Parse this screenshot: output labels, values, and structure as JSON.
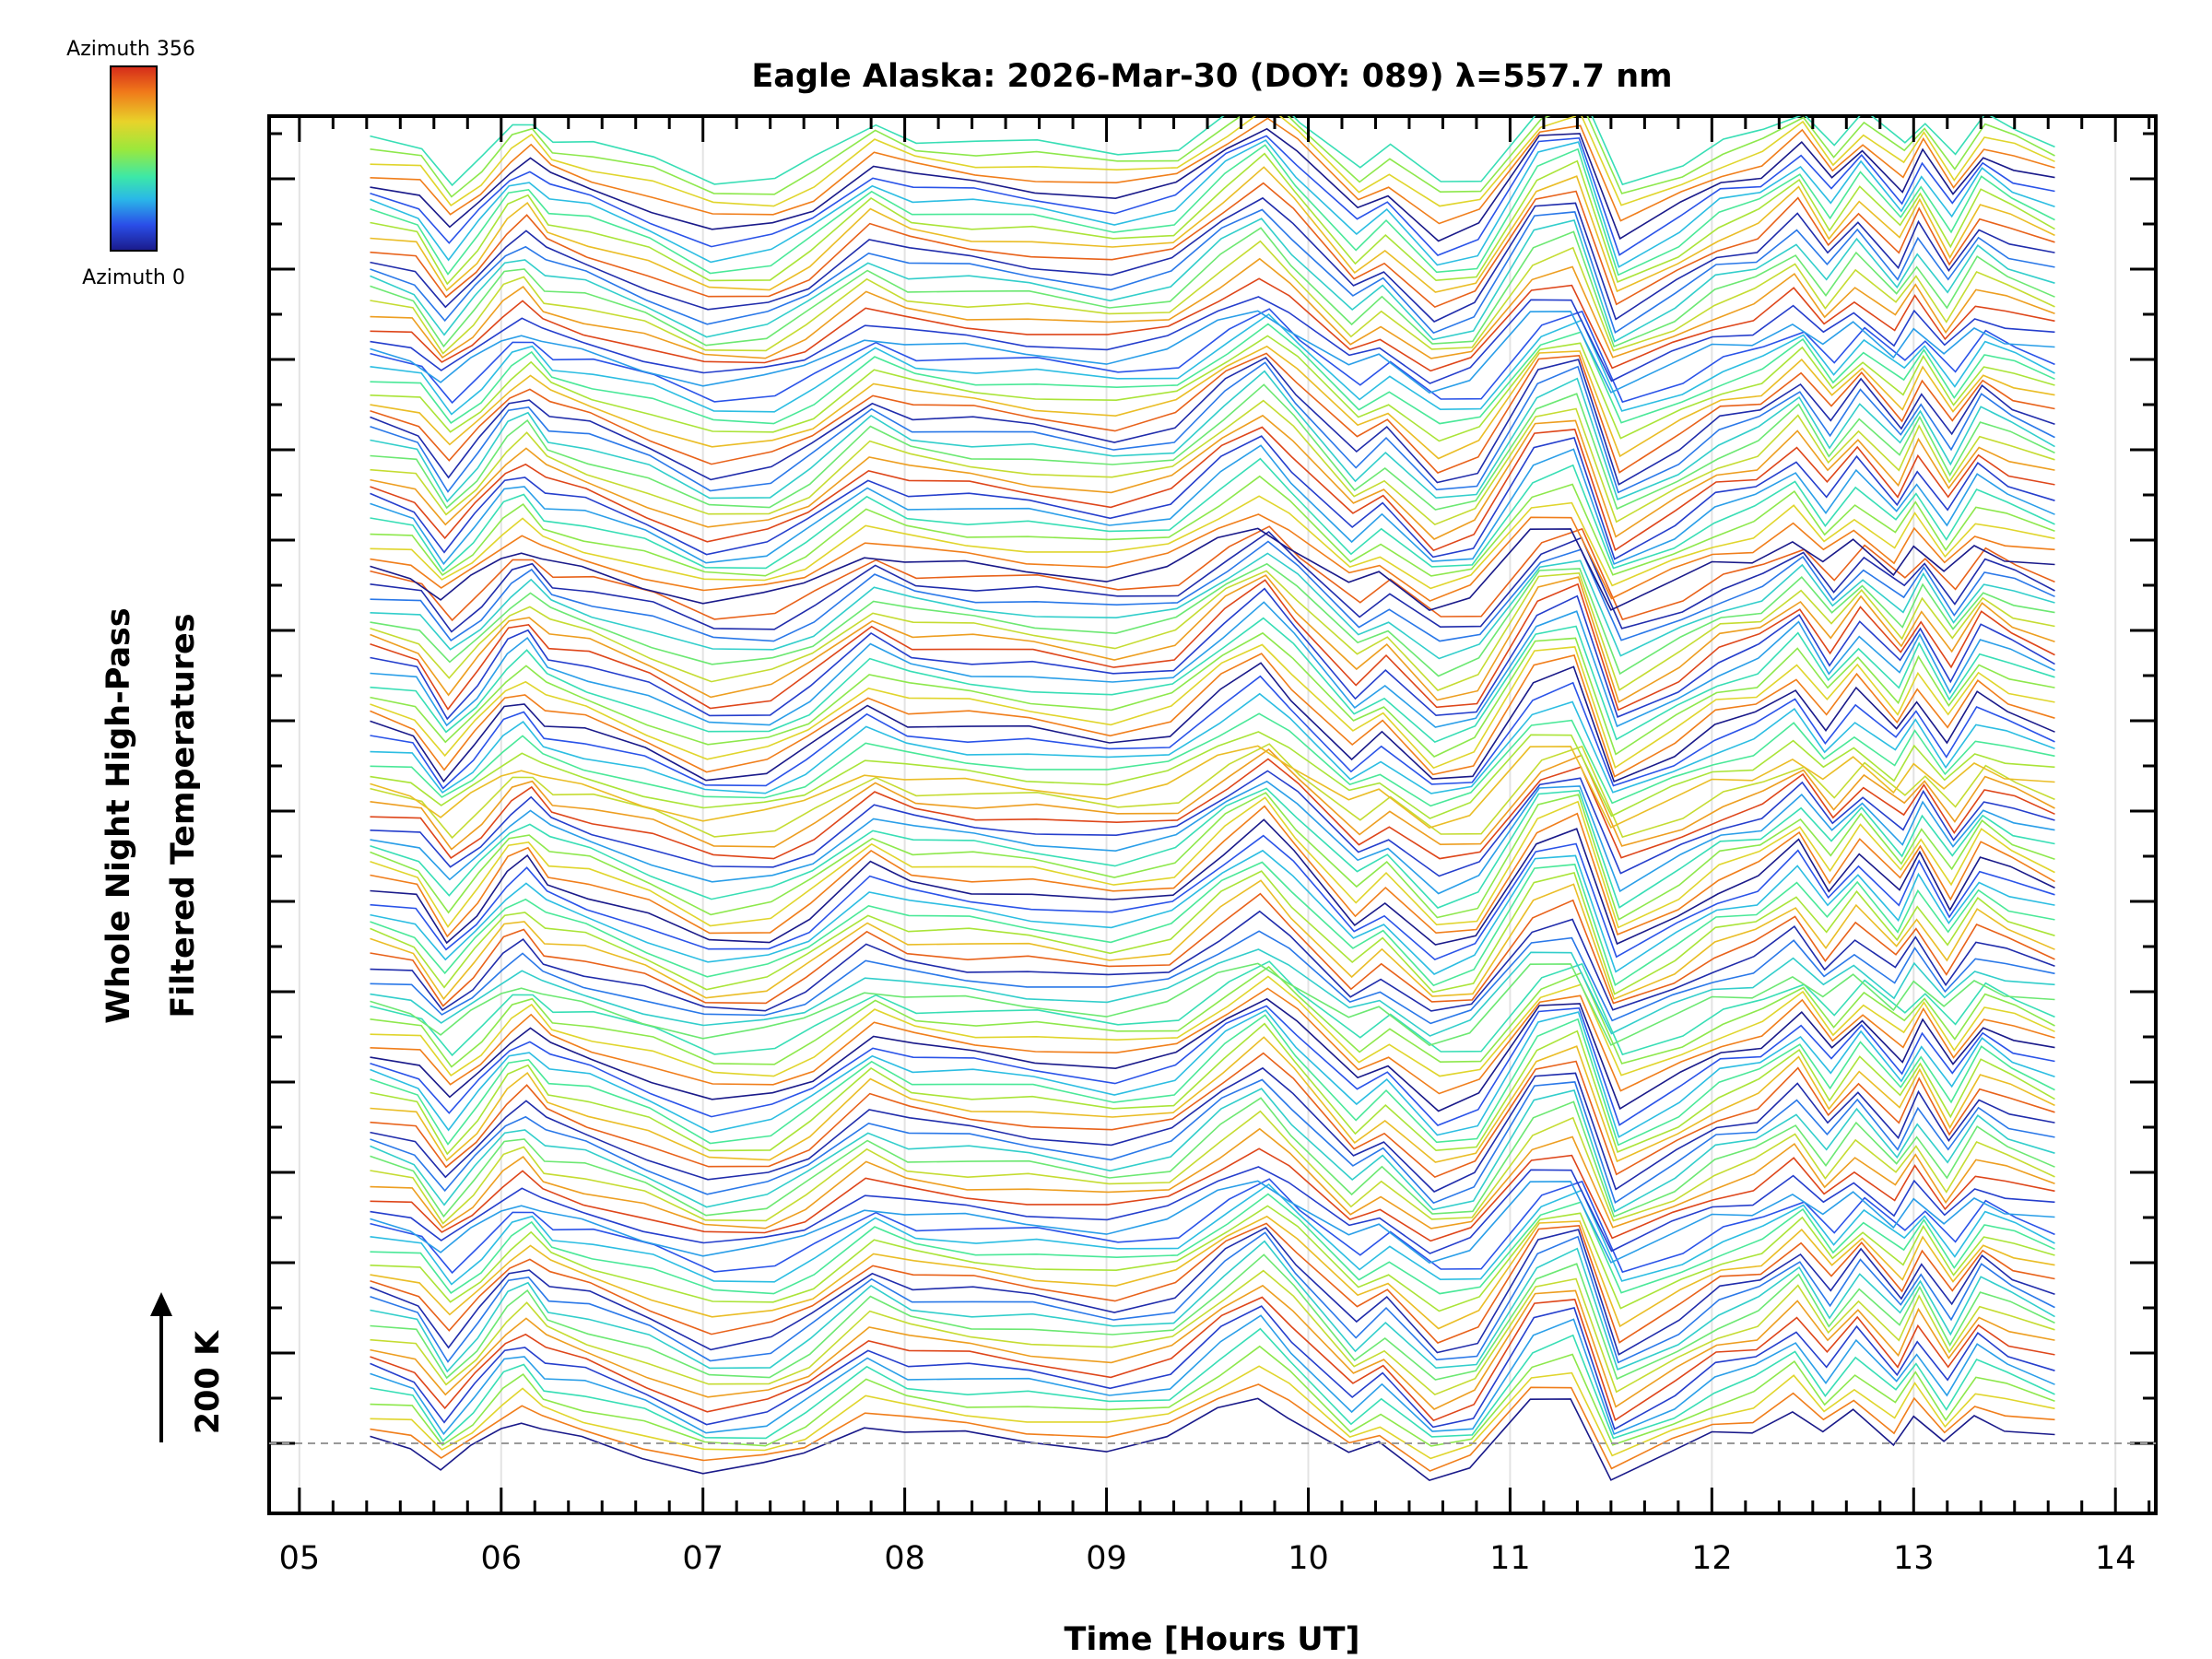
{
  "chart_data": {
    "type": "line",
    "title": "Eagle Alaska: 2026-Mar-30 (DOY: 089) λ=557.7 nm",
    "xlabel": "Time [Hours UT]",
    "ylabel_line1": "Whole Night High-Pass",
    "ylabel_line2": "Filtered Temperatures",
    "scale_label": "200 K",
    "xlim": [
      4.85,
      14.2
    ],
    "x_ticks": [
      "05",
      "06",
      "07",
      "08",
      "09",
      "10",
      "11",
      "12",
      "13",
      "14"
    ],
    "x_tick_values": [
      5,
      6,
      7,
      8,
      9,
      10,
      11,
      12,
      13,
      14
    ],
    "data_range_hours": [
      5.35,
      13.7
    ],
    "colorbar": {
      "top_label": "Azimuth 356",
      "bottom_label": "Azimuth 0",
      "colors": [
        "#d42a1a",
        "#f07a1a",
        "#e8d32a",
        "#9be83c",
        "#3ce8a8",
        "#2ab8e8",
        "#2a4ee8",
        "#1a1a8a"
      ]
    },
    "series_count": 120,
    "groups": 6,
    "baseline_style": "dashed",
    "trace_shape_hours": [
      5.35,
      5.55,
      5.7,
      5.85,
      6.0,
      6.1,
      6.2,
      6.4,
      6.7,
      7.0,
      7.3,
      7.5,
      7.8,
      8.0,
      8.3,
      8.6,
      9.0,
      9.3,
      9.55,
      9.75,
      9.9,
      10.2,
      10.35,
      10.6,
      10.8,
      11.1,
      11.3,
      11.5,
      11.8,
      12.0,
      12.2,
      12.4,
      12.55,
      12.7,
      12.9,
      13.0,
      13.15,
      13.3,
      13.45,
      13.7
    ],
    "trace_shape_values": [
      0.2,
      0.0,
      -0.8,
      -0.2,
      0.5,
      0.7,
      0.3,
      0.1,
      -0.3,
      -0.8,
      -0.7,
      -0.3,
      0.6,
      0.3,
      0.2,
      0.1,
      -0.1,
      0.1,
      0.9,
      1.4,
      0.8,
      -0.4,
      0.0,
      -0.9,
      -0.7,
      1.1,
      1.3,
      -0.9,
      -0.3,
      0.2,
      0.4,
      1.0,
      0.2,
      0.9,
      0.1,
      0.8,
      -0.1,
      0.8,
      0.5,
      0.2
    ]
  }
}
